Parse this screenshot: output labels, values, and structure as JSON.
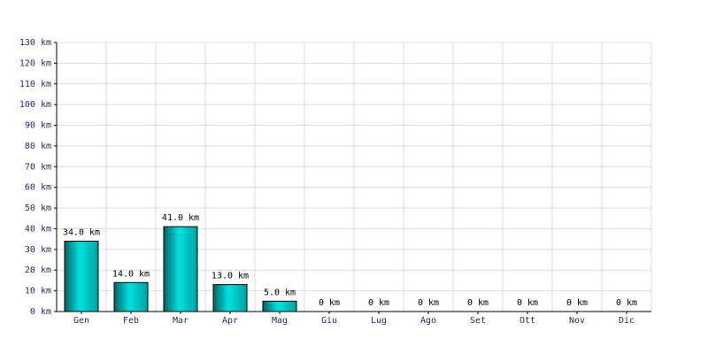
{
  "chart_data": {
    "type": "bar",
    "categories": [
      "Gen",
      "Feb",
      "Mar",
      "Apr",
      "Mag",
      "Giu",
      "Lug",
      "Ago",
      "Set",
      "Ott",
      "Nov",
      "Dic"
    ],
    "values": [
      34,
      14,
      41,
      13,
      5,
      0,
      0,
      0,
      0,
      0,
      0,
      0
    ],
    "value_labels": [
      "34.0 km",
      "14.0 km",
      "41.0 km",
      "13.0 km",
      "5.0 km",
      "0 km",
      "0 km",
      "0 km",
      "0 km",
      "0 km",
      "0 km",
      "0 km"
    ],
    "color": "#00e0e0",
    "ylim": [
      0,
      130
    ],
    "yticks": [
      {
        "value": 0,
        "label": "0 km"
      },
      {
        "value": 10,
        "label": "10 km"
      },
      {
        "value": 20,
        "label": "20 km"
      },
      {
        "value": 30,
        "label": "30 km"
      },
      {
        "value": 40,
        "label": "40 km"
      },
      {
        "value": 50,
        "label": "50 km"
      },
      {
        "value": 60,
        "label": "60 km"
      },
      {
        "value": 70,
        "label": "70 km"
      },
      {
        "value": 80,
        "label": "80 km"
      },
      {
        "value": 90,
        "label": "90 km"
      },
      {
        "value": 100,
        "label": "100 km"
      },
      {
        "value": 110,
        "label": "110 km"
      },
      {
        "value": 120,
        "label": "120 km"
      },
      {
        "value": 130,
        "label": "130 km"
      }
    ],
    "grid": true
  }
}
